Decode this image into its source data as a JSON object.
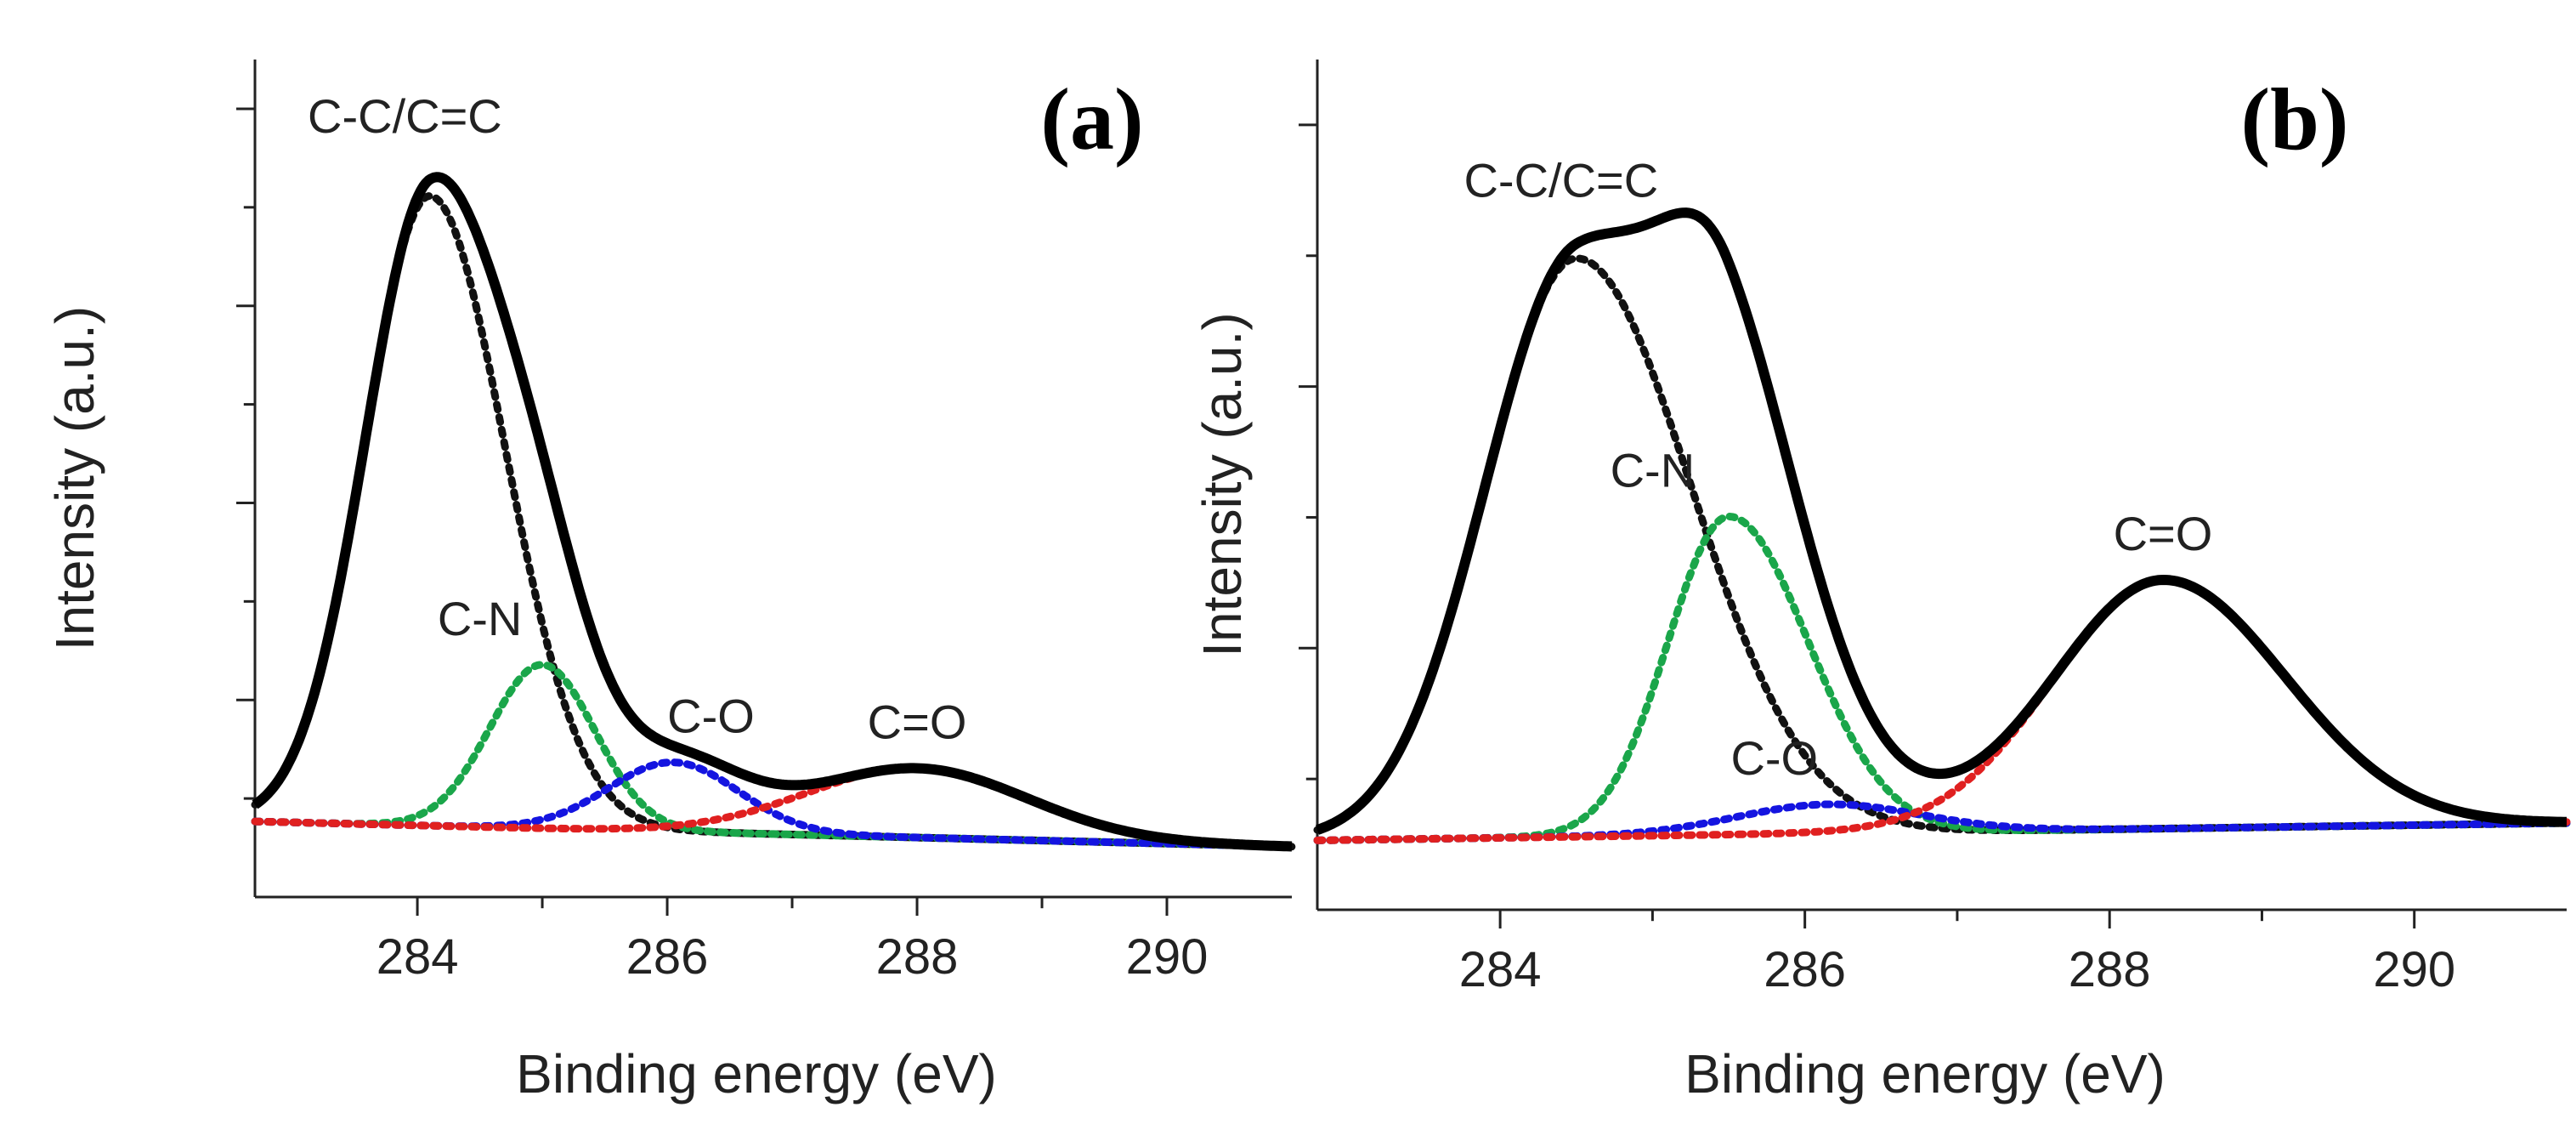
{
  "chart_data": [
    {
      "type": "line",
      "panel_label": "(a)",
      "xlabel": "Binding energy (eV)",
      "ylabel": "Intensity (a.u.)",
      "xlim": [
        282.7,
        291.0
      ],
      "ylim": [
        -0.08,
        1.25
      ],
      "xticks": [
        284,
        286,
        288,
        290
      ],
      "baseline": {
        "start": 0.04,
        "end": 0.0
      },
      "envelope_color": "#000000",
      "series": [
        {
          "name": "C-C/C=C",
          "label": "C-C/C=C",
          "color": "#111111",
          "center": 284.1,
          "height": 1.0,
          "sigma_left": 0.52,
          "sigma_right": 0.6,
          "label_x": 283.9
        },
        {
          "name": "C-N",
          "label": "C-N",
          "color": "#1aa64a",
          "center": 285.0,
          "height": 0.26,
          "sigma_left": 0.42,
          "sigma_right": 0.42,
          "label_x": 284.5
        },
        {
          "name": "C-O",
          "label": "C-O",
          "color": "#1414e0",
          "center": 286.05,
          "height": 0.11,
          "sigma_left": 0.52,
          "sigma_right": 0.52,
          "label_x": 286.35
        },
        {
          "name": "C=O",
          "label": "C=O",
          "color": "#e02020",
          "center": 288.0,
          "height": 0.11,
          "sigma_left": 0.88,
          "sigma_right": 0.88,
          "label_x": 288.0
        }
      ]
    },
    {
      "type": "line",
      "panel_label": "(b)",
      "xlabel": "Binding energy (eV)",
      "ylabel": "Intensity (a.u.)",
      "xlim": [
        282.8,
        291.0
      ],
      "ylim": [
        -0.12,
        1.35
      ],
      "xticks": [
        284,
        286,
        288,
        290
      ],
      "baseline": {
        "start": 0.0,
        "end": 0.03
      },
      "envelope_color": "#000000",
      "series": [
        {
          "name": "C-C/C=C",
          "label": "C-C/C=C",
          "color": "#111111",
          "center": 284.5,
          "height": 1.0,
          "sigma_left": 0.6,
          "sigma_right": 0.75,
          "label_x": 284.4
        },
        {
          "name": "C-N",
          "label": "C-N",
          "color": "#1aa64a",
          "center": 285.5,
          "height": 0.55,
          "sigma_left": 0.4,
          "sigma_right": 0.52,
          "label_x": 285.0
        },
        {
          "name": "C-O",
          "label": "C-O",
          "color": "#1414e0",
          "center": 286.15,
          "height": 0.05,
          "sigma_left": 0.6,
          "sigma_right": 0.6,
          "label_x": 285.8
        },
        {
          "name": "C=O",
          "label": "C=O",
          "color": "#e02020",
          "center": 288.35,
          "height": 0.43,
          "sigma_left": 0.72,
          "sigma_right": 0.8,
          "label_x": 288.35
        }
      ]
    }
  ]
}
